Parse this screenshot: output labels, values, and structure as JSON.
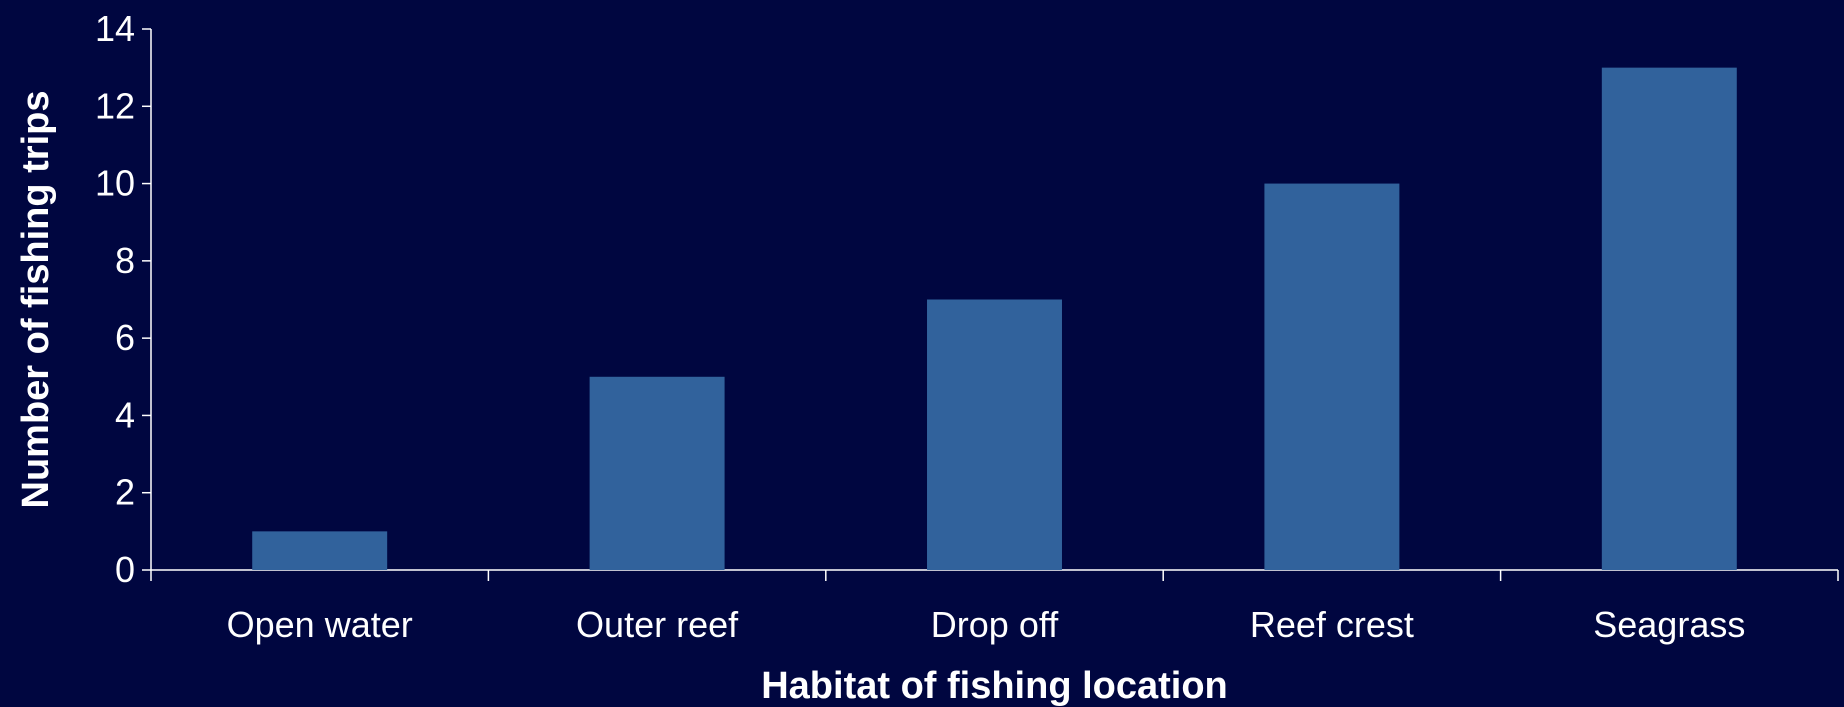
{
  "chart_data": {
    "type": "bar",
    "title": "",
    "categories": [
      "Open water",
      "Outer reef",
      "Drop off",
      "Reef crest",
      "Seagrass"
    ],
    "values": [
      1,
      5,
      7,
      10,
      13
    ],
    "xlabel": "Habitat of fishing location",
    "ylabel": "Number of fishing trips",
    "ylim": [
      0,
      14
    ],
    "yticks": [
      0,
      2,
      4,
      6,
      8,
      10,
      12,
      14
    ],
    "grid": false,
    "legend": "none",
    "colors": {
      "background": "#000640",
      "bar": "#31629C",
      "axis": "#ffffff",
      "text": "#ffffff"
    }
  }
}
